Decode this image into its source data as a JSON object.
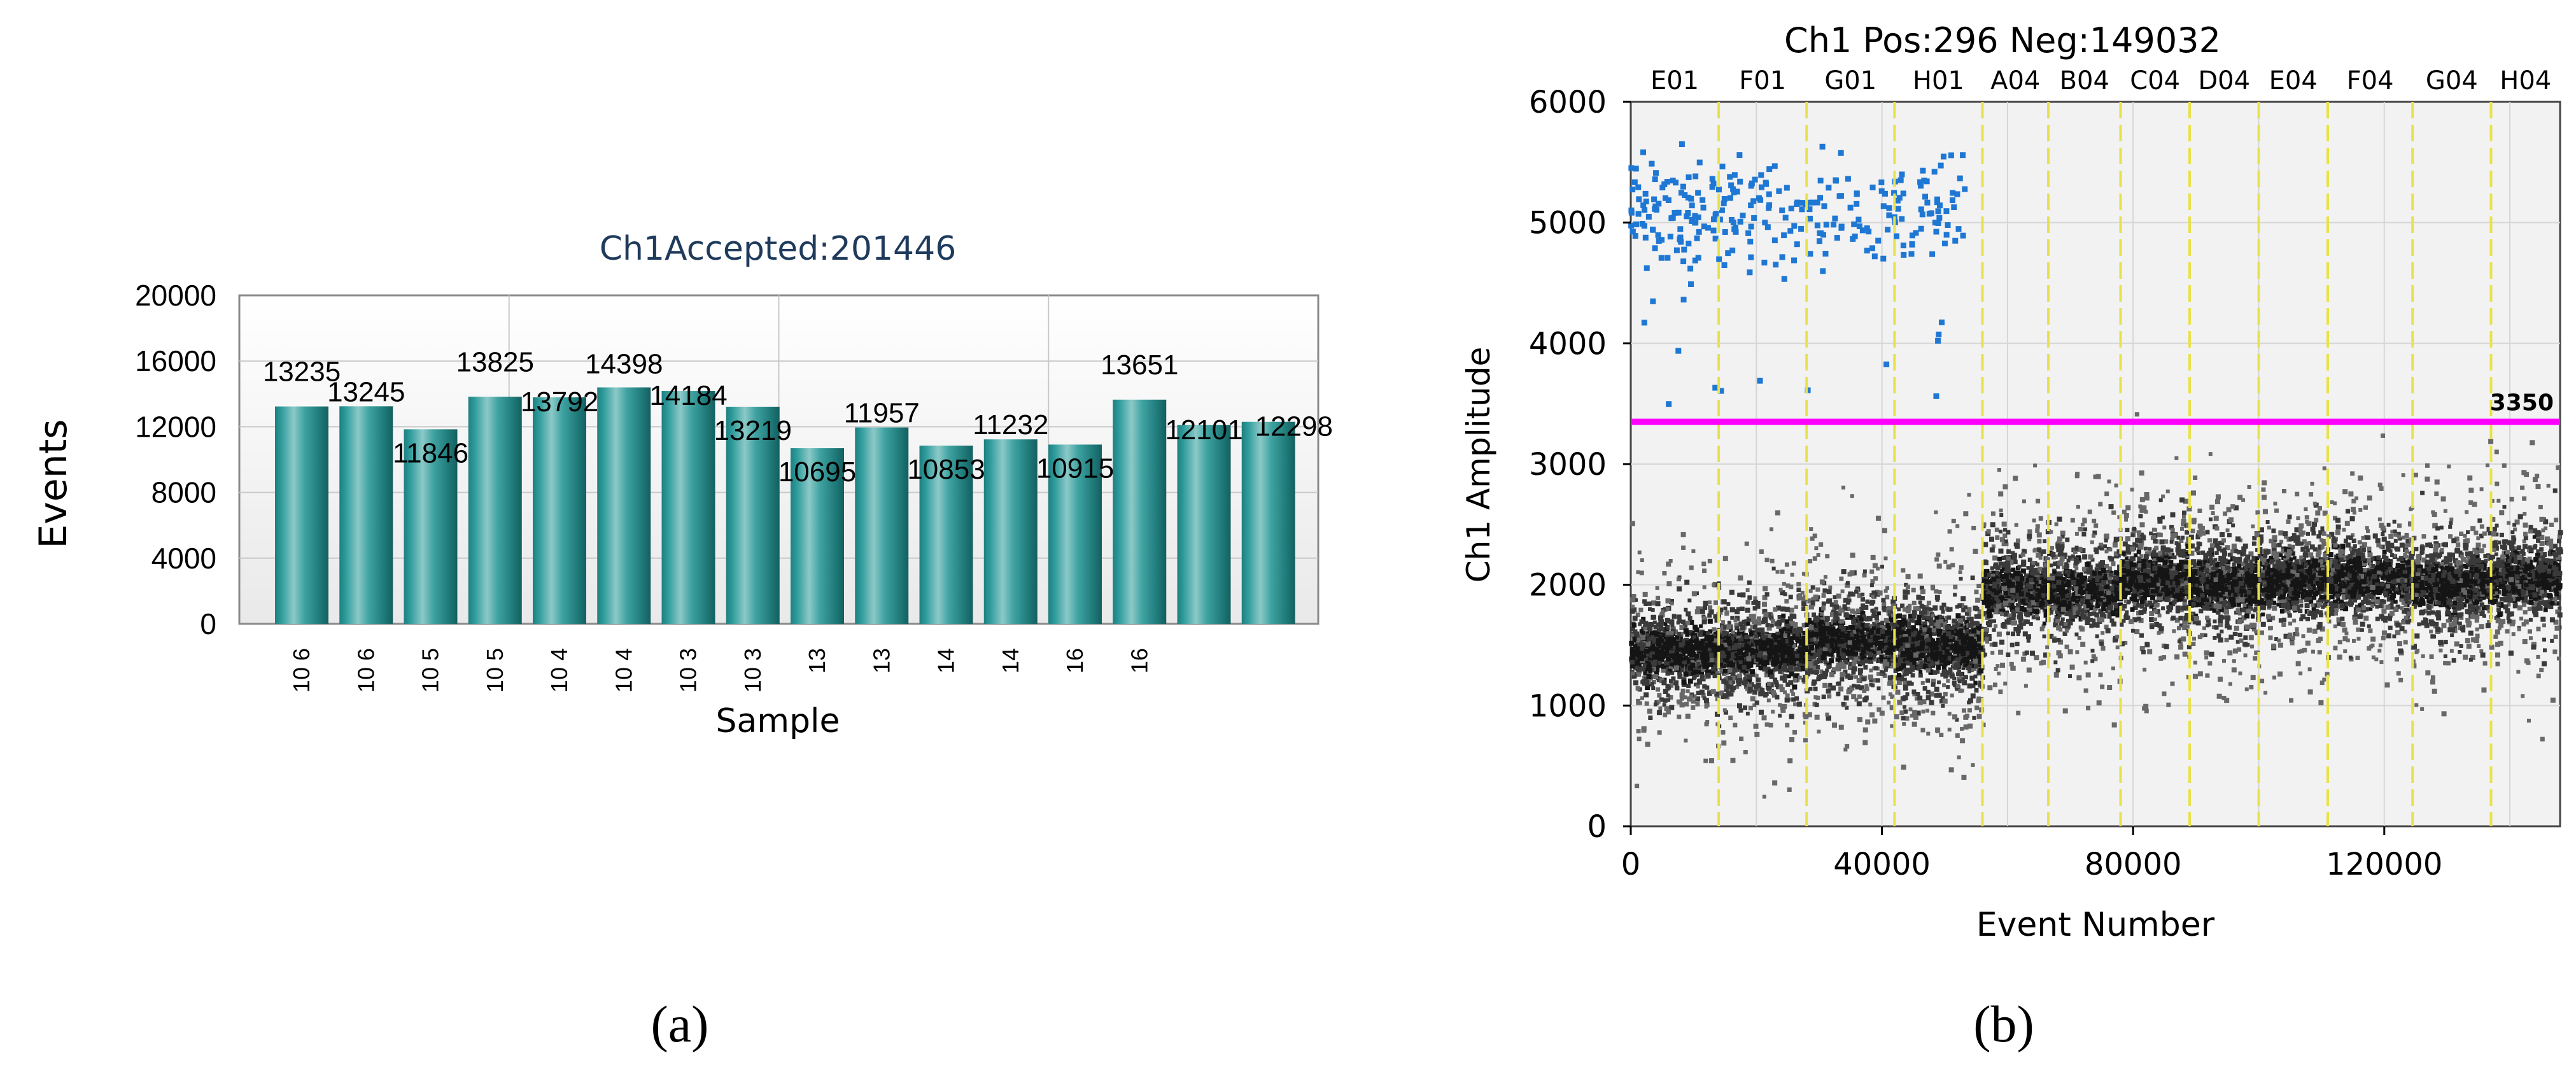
{
  "chart_data": [
    {
      "type": "bar",
      "title": "Ch1Accepted:201446",
      "xlabel": "Sample",
      "ylabel": "Events",
      "ylim": [
        0,
        20000
      ],
      "yticks": [
        "0",
        "4000",
        "8000",
        "12000",
        "16000",
        "20000"
      ],
      "categories": [
        "10 6",
        "10 6",
        "10 5",
        "10 5",
        "10 4",
        "10 4",
        "10 3",
        "10 3",
        "13",
        "13",
        "14",
        "14",
        "16",
        "16",
        "",
        ""
      ],
      "values": [
        13235,
        13245,
        11846,
        13825,
        13792,
        14398,
        14184,
        13219,
        10695,
        11957,
        10853,
        11232,
        10915,
        13651,
        12101,
        12298
      ],
      "grid": true,
      "panel_label": "(a)"
    },
    {
      "type": "scatter",
      "title": "Ch1 Pos:296 Neg:149032",
      "xlabel": "Event Number",
      "ylabel": "Ch1 Amplitude",
      "xlim": [
        0,
        148000
      ],
      "ylim": [
        0,
        6000
      ],
      "xticks": [
        "0",
        "40000",
        "80000",
        "120000"
      ],
      "yticks": [
        "0",
        "1000",
        "2000",
        "3000",
        "4000",
        "5000",
        "6000"
      ],
      "threshold": {
        "value": 3350,
        "label": "3350",
        "color": "#ff00ff"
      },
      "well_boundaries": [
        14000,
        28000,
        42000,
        56000,
        66500,
        78000,
        89000,
        100000,
        111000,
        124500,
        137000
      ],
      "well_labels": [
        "E01",
        "F01",
        "G01",
        "H01",
        "A04",
        "B04",
        "C04",
        "D04",
        "E04",
        "F04",
        "G04",
        "H04"
      ],
      "negative_centers": [
        1450,
        1450,
        1550,
        1500,
        1950,
        1950,
        2050,
        2000,
        2050,
        2050,
        2000,
        2050
      ],
      "positive_range_x": [
        0,
        56000
      ],
      "positive_center": 5100,
      "positive_count": 296,
      "negative_count": 149032,
      "colors": {
        "positive": "#1f77d4",
        "negative": "#3a3a3a",
        "boundary": "#e8e24a"
      },
      "panel_label": "(b)"
    }
  ]
}
